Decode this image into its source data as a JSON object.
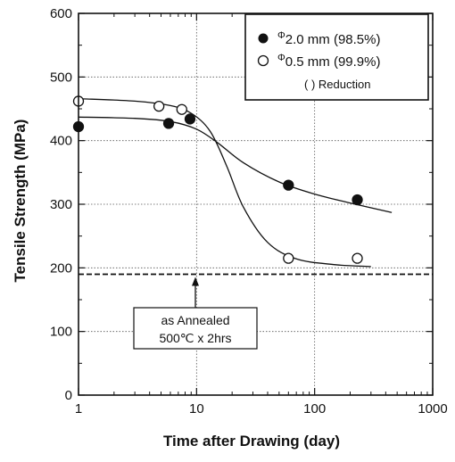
{
  "chart_data": {
    "type": "scatter",
    "xlabel": "Time after Drawing  (day)",
    "ylabel": "Tensile Strength  (MPa)",
    "x_scale": "log",
    "xlim": [
      1,
      1000
    ],
    "ylim": [
      0,
      600
    ],
    "x_ticks": [
      1,
      10,
      100,
      1000
    ],
    "x_tick_labels": [
      "1",
      "10",
      "100",
      "1000"
    ],
    "y_ticks": [
      0,
      100,
      200,
      300,
      400,
      500,
      600
    ],
    "y_tick_labels": [
      "0",
      "100",
      "200",
      "300",
      "400",
      "500",
      "600"
    ],
    "grid": true,
    "legend_position": "top-right",
    "series": [
      {
        "name_prefix": "Φ",
        "name_main": "2.0 mm  (98.5%)",
        "marker": "filled-circle",
        "color": "#111111",
        "points": [
          {
            "x": 1,
            "y": 422
          },
          {
            "x": 5.8,
            "y": 427
          },
          {
            "x": 8.8,
            "y": 434
          },
          {
            "x": 60,
            "y": 330
          },
          {
            "x": 230,
            "y": 307
          }
        ],
        "fit_curve": [
          {
            "x": 1,
            "y": 437
          },
          {
            "x": 3,
            "y": 435
          },
          {
            "x": 6,
            "y": 430
          },
          {
            "x": 10,
            "y": 418
          },
          {
            "x": 15,
            "y": 397
          },
          {
            "x": 25,
            "y": 365
          },
          {
            "x": 50,
            "y": 335
          },
          {
            "x": 100,
            "y": 316
          },
          {
            "x": 200,
            "y": 302
          },
          {
            "x": 450,
            "y": 287
          }
        ]
      },
      {
        "name_prefix": "Φ",
        "name_main": "0.5 mm  (99.9%)",
        "marker": "open-circle",
        "color": "#111111",
        "points": [
          {
            "x": 1,
            "y": 462
          },
          {
            "x": 4.8,
            "y": 454
          },
          {
            "x": 7.5,
            "y": 449
          },
          {
            "x": 60,
            "y": 215
          },
          {
            "x": 230,
            "y": 215
          }
        ],
        "fit_curve": [
          {
            "x": 1,
            "y": 466
          },
          {
            "x": 3,
            "y": 462
          },
          {
            "x": 6,
            "y": 455
          },
          {
            "x": 9,
            "y": 443
          },
          {
            "x": 13,
            "y": 415
          },
          {
            "x": 18,
            "y": 360
          },
          {
            "x": 25,
            "y": 295
          },
          {
            "x": 40,
            "y": 240
          },
          {
            "x": 70,
            "y": 214
          },
          {
            "x": 150,
            "y": 205
          },
          {
            "x": 300,
            "y": 202
          }
        ]
      }
    ],
    "legend_note": "( ) Reduction",
    "reference_line": {
      "y": 190,
      "style": "dashed"
    },
    "annotation": {
      "lines": [
        "as Annealed",
        "500℃ x 2hrs"
      ],
      "arrow_to_y": 190
    }
  }
}
